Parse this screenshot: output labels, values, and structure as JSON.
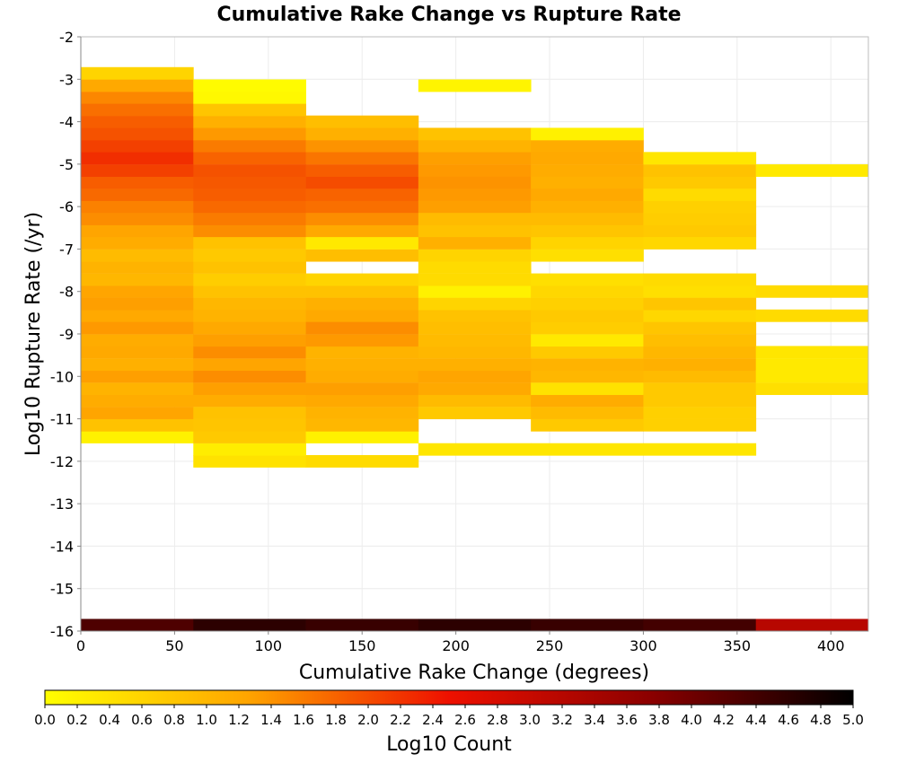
{
  "chart_data": {
    "type": "heatmap",
    "title": "Cumulative Rake Change vs Rupture Rate",
    "xlabel": "Cumulative Rake Change (degrees)",
    "ylabel": "Log10 Rupture Rate (/yr)",
    "colorbar_label": "Log10 Count",
    "xlim": [
      0,
      420
    ],
    "ylim": [
      -16,
      -2
    ],
    "x_ticks": [
      "0",
      "50",
      "100",
      "150",
      "200",
      "250",
      "300",
      "350",
      "400"
    ],
    "y_ticks": [
      "-2",
      "-3",
      "-4",
      "-5",
      "-6",
      "-7",
      "-8",
      "-9",
      "-10",
      "-11",
      "-12",
      "-13",
      "-14",
      "-15",
      "-16"
    ],
    "colorbar_range": [
      0,
      5
    ],
    "colorbar_ticks": [
      "0.0",
      "0.2",
      "0.4",
      "0.6",
      "0.8",
      "1.0",
      "1.2",
      "1.4",
      "1.6",
      "1.8",
      "2.0",
      "2.2",
      "2.4",
      "2.6",
      "2.8",
      "3.0",
      "3.2",
      "3.4",
      "3.6",
      "3.8",
      "4.0",
      "4.2",
      "4.4",
      "4.6",
      "4.8",
      "5.0"
    ],
    "colormap": [
      "#ffff00",
      "#ffa500",
      "#ee1000",
      "#8b0000",
      "#000000"
    ],
    "grid": true,
    "x_bin_width": 60,
    "y_bin_height": 0.2857,
    "columns": [
      {
        "x_start": 0,
        "cells": [
          {
            "y": -16.0,
            "v": 4.3
          },
          {
            "y": -11.57,
            "v": 0.2
          },
          {
            "y": -11.29,
            "v": 0.85
          },
          {
            "y": -11.0,
            "v": 1.25
          },
          {
            "y": -10.71,
            "v": 1.15
          },
          {
            "y": -10.43,
            "v": 1.05
          },
          {
            "y": -10.14,
            "v": 1.3
          },
          {
            "y": -9.86,
            "v": 1.1
          },
          {
            "y": -9.57,
            "v": 1.2
          },
          {
            "y": -9.29,
            "v": 1.15
          },
          {
            "y": -9.0,
            "v": 1.35
          },
          {
            "y": -8.71,
            "v": 1.2
          },
          {
            "y": -8.43,
            "v": 1.3
          },
          {
            "y": -8.14,
            "v": 1.25
          },
          {
            "y": -7.86,
            "v": 1.0
          },
          {
            "y": -7.57,
            "v": 1.05
          },
          {
            "y": -7.29,
            "v": 0.95
          },
          {
            "y": -7.0,
            "v": 1.15
          },
          {
            "y": -6.71,
            "v": 1.25
          },
          {
            "y": -6.43,
            "v": 1.45
          },
          {
            "y": -6.14,
            "v": 1.55
          },
          {
            "y": -5.86,
            "v": 1.75
          },
          {
            "y": -5.57,
            "v": 1.85
          },
          {
            "y": -5.29,
            "v": 2.1
          },
          {
            "y": -5.0,
            "v": 2.25
          },
          {
            "y": -4.71,
            "v": 2.1
          },
          {
            "y": -4.43,
            "v": 1.95
          },
          {
            "y": -4.14,
            "v": 1.85
          },
          {
            "y": -3.86,
            "v": 1.7
          },
          {
            "y": -3.57,
            "v": 1.5
          },
          {
            "y": -3.29,
            "v": 1.2
          },
          {
            "y": -3.0,
            "v": 0.6
          }
        ]
      },
      {
        "x_start": 60,
        "cells": [
          {
            "y": -16.0,
            "v": 4.6
          },
          {
            "y": -12.14,
            "v": 0.4
          },
          {
            "y": -11.86,
            "v": 0.25
          },
          {
            "y": -11.57,
            "v": 0.75
          },
          {
            "y": -11.29,
            "v": 0.8
          },
          {
            "y": -11.0,
            "v": 0.85
          },
          {
            "y": -10.71,
            "v": 1.15
          },
          {
            "y": -10.43,
            "v": 1.3
          },
          {
            "y": -10.14,
            "v": 1.45
          },
          {
            "y": -9.86,
            "v": 1.25
          },
          {
            "y": -9.57,
            "v": 1.45
          },
          {
            "y": -9.29,
            "v": 1.3
          },
          {
            "y": -9.0,
            "v": 1.2
          },
          {
            "y": -8.71,
            "v": 1.05
          },
          {
            "y": -8.43,
            "v": 1.0
          },
          {
            "y": -8.14,
            "v": 0.85
          },
          {
            "y": -7.86,
            "v": 0.7
          },
          {
            "y": -7.57,
            "v": 0.85
          },
          {
            "y": -7.29,
            "v": 0.75
          },
          {
            "y": -7.0,
            "v": 0.85
          },
          {
            "y": -6.71,
            "v": 1.45
          },
          {
            "y": -6.43,
            "v": 1.6
          },
          {
            "y": -6.14,
            "v": 1.75
          },
          {
            "y": -5.86,
            "v": 1.85
          },
          {
            "y": -5.57,
            "v": 1.9
          },
          {
            "y": -5.29,
            "v": 1.95
          },
          {
            "y": -5.0,
            "v": 1.8
          },
          {
            "y": -4.71,
            "v": 1.6
          },
          {
            "y": -4.43,
            "v": 1.35
          },
          {
            "y": -4.14,
            "v": 1.1
          },
          {
            "y": -3.86,
            "v": 0.8
          },
          {
            "y": -3.57,
            "v": 0.1
          },
          {
            "y": -3.29,
            "v": 0.05
          }
        ]
      },
      {
        "x_start": 120,
        "cells": [
          {
            "y": -16.0,
            "v": 4.5
          },
          {
            "y": -12.14,
            "v": 0.5
          },
          {
            "y": -11.57,
            "v": 0.2
          },
          {
            "y": -11.29,
            "v": 1.0
          },
          {
            "y": -11.0,
            "v": 1.05
          },
          {
            "y": -10.71,
            "v": 1.2
          },
          {
            "y": -10.43,
            "v": 1.3
          },
          {
            "y": -10.14,
            "v": 1.15
          },
          {
            "y": -9.86,
            "v": 1.1
          },
          {
            "y": -9.57,
            "v": 1.05
          },
          {
            "y": -9.29,
            "v": 1.35
          },
          {
            "y": -9.0,
            "v": 1.45
          },
          {
            "y": -8.71,
            "v": 1.2
          },
          {
            "y": -8.43,
            "v": 1.1
          },
          {
            "y": -8.14,
            "v": 0.85
          },
          {
            "y": -7.86,
            "v": 0.6
          },
          {
            "y": -7.29,
            "v": 0.9
          },
          {
            "y": -7.0,
            "v": 0.3
          },
          {
            "y": -6.71,
            "v": 1.2
          },
          {
            "y": -6.43,
            "v": 1.45
          },
          {
            "y": -6.14,
            "v": 1.7
          },
          {
            "y": -5.86,
            "v": 1.8
          },
          {
            "y": -5.57,
            "v": 2.0
          },
          {
            "y": -5.29,
            "v": 1.85
          },
          {
            "y": -5.0,
            "v": 1.65
          },
          {
            "y": -4.71,
            "v": 1.4
          },
          {
            "y": -4.43,
            "v": 1.1
          },
          {
            "y": -4.14,
            "v": 0.9
          }
        ]
      },
      {
        "x_start": 180,
        "cells": [
          {
            "y": -16.0,
            "v": 4.6
          },
          {
            "y": -11.86,
            "v": 0.35
          },
          {
            "y": -11.0,
            "v": 0.75
          },
          {
            "y": -10.71,
            "v": 0.95
          },
          {
            "y": -10.43,
            "v": 1.2
          },
          {
            "y": -10.14,
            "v": 1.25
          },
          {
            "y": -9.86,
            "v": 1.1
          },
          {
            "y": -9.57,
            "v": 1.0
          },
          {
            "y": -9.29,
            "v": 0.95
          },
          {
            "y": -9.0,
            "v": 0.9
          },
          {
            "y": -8.71,
            "v": 0.85
          },
          {
            "y": -8.43,
            "v": 0.6
          },
          {
            "y": -8.14,
            "v": 0.2
          },
          {
            "y": -7.86,
            "v": 0.5
          },
          {
            "y": -7.57,
            "v": 0.5
          },
          {
            "y": -7.29,
            "v": 0.6
          },
          {
            "y": -7.0,
            "v": 1.1
          },
          {
            "y": -6.71,
            "v": 0.85
          },
          {
            "y": -6.43,
            "v": 0.95
          },
          {
            "y": -6.14,
            "v": 1.3
          },
          {
            "y": -5.86,
            "v": 1.35
          },
          {
            "y": -5.57,
            "v": 1.4
          },
          {
            "y": -5.29,
            "v": 1.35
          },
          {
            "y": -5.0,
            "v": 1.3
          },
          {
            "y": -4.71,
            "v": 1.05
          },
          {
            "y": -4.43,
            "v": 0.85
          },
          {
            "y": -3.29,
            "v": 0.15
          }
        ]
      },
      {
        "x_start": 240,
        "cells": [
          {
            "y": -16.0,
            "v": 4.5
          },
          {
            "y": -11.86,
            "v": 0.35
          },
          {
            "y": -11.29,
            "v": 0.75
          },
          {
            "y": -11.0,
            "v": 0.95
          },
          {
            "y": -10.71,
            "v": 1.15
          },
          {
            "y": -10.43,
            "v": 0.4
          },
          {
            "y": -10.14,
            "v": 1.0
          },
          {
            "y": -9.86,
            "v": 1.05
          },
          {
            "y": -9.57,
            "v": 0.75
          },
          {
            "y": -9.29,
            "v": 0.3
          },
          {
            "y": -9.0,
            "v": 0.7
          },
          {
            "y": -8.71,
            "v": 0.75
          },
          {
            "y": -8.43,
            "v": 0.65
          },
          {
            "y": -8.14,
            "v": 0.55
          },
          {
            "y": -7.86,
            "v": 0.45
          },
          {
            "y": -7.29,
            "v": 0.45
          },
          {
            "y": -7.0,
            "v": 0.6
          },
          {
            "y": -6.71,
            "v": 0.8
          },
          {
            "y": -6.43,
            "v": 0.95
          },
          {
            "y": -6.14,
            "v": 1.1
          },
          {
            "y": -5.86,
            "v": 1.2
          },
          {
            "y": -5.57,
            "v": 1.1
          },
          {
            "y": -5.29,
            "v": 1.15
          },
          {
            "y": -5.0,
            "v": 1.2
          },
          {
            "y": -4.71,
            "v": 1.15
          },
          {
            "y": -4.43,
            "v": 0.2
          }
        ]
      },
      {
        "x_start": 300,
        "cells": [
          {
            "y": -16.0,
            "v": 4.4
          },
          {
            "y": -11.86,
            "v": 0.35
          },
          {
            "y": -11.29,
            "v": 0.65
          },
          {
            "y": -11.0,
            "v": 0.65
          },
          {
            "y": -10.71,
            "v": 0.75
          },
          {
            "y": -10.43,
            "v": 0.75
          },
          {
            "y": -10.14,
            "v": 0.95
          },
          {
            "y": -9.86,
            "v": 1.1
          },
          {
            "y": -9.57,
            "v": 1.0
          },
          {
            "y": -9.29,
            "v": 0.9
          },
          {
            "y": -9.0,
            "v": 0.8
          },
          {
            "y": -8.71,
            "v": 0.55
          },
          {
            "y": -8.43,
            "v": 0.8
          },
          {
            "y": -8.14,
            "v": 0.45
          },
          {
            "y": -7.86,
            "v": 0.5
          },
          {
            "y": -7.0,
            "v": 0.55
          },
          {
            "y": -6.71,
            "v": 0.75
          },
          {
            "y": -6.43,
            "v": 0.7
          },
          {
            "y": -6.14,
            "v": 0.65
          },
          {
            "y": -5.86,
            "v": 0.5
          },
          {
            "y": -5.57,
            "v": 0.75
          },
          {
            "y": -5.29,
            "v": 0.85
          },
          {
            "y": -5.0,
            "v": 0.35
          }
        ]
      },
      {
        "x_start": 360,
        "cells": [
          {
            "y": -16.0,
            "v": 3.2
          },
          {
            "y": -10.43,
            "v": 0.45
          },
          {
            "y": -10.14,
            "v": 0.3
          },
          {
            "y": -9.86,
            "v": 0.3
          },
          {
            "y": -9.57,
            "v": 0.35
          },
          {
            "y": -8.71,
            "v": 0.5
          },
          {
            "y": -8.14,
            "v": 0.5
          },
          {
            "y": -5.29,
            "v": 0.3
          }
        ]
      }
    ]
  }
}
